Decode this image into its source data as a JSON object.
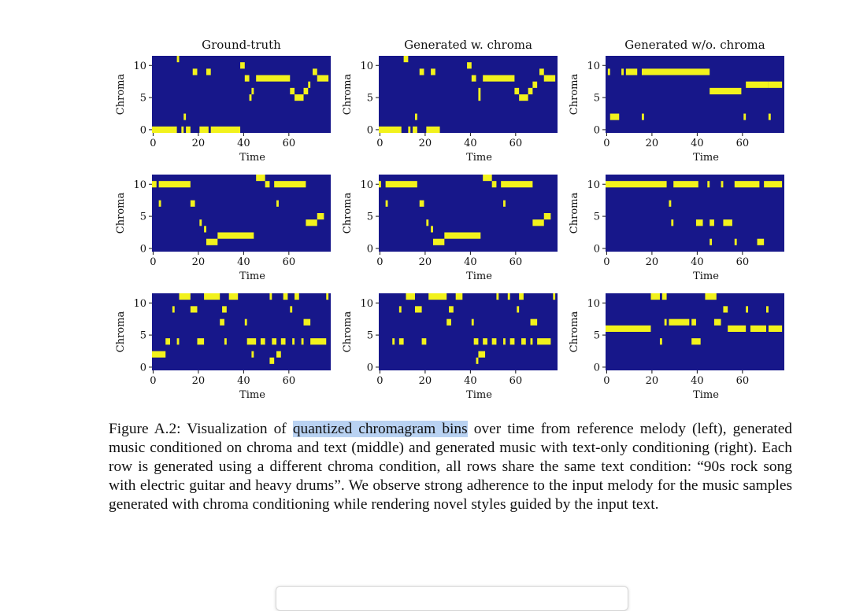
{
  "figure": {
    "titles": [
      "Ground-truth",
      "Generated w. chroma",
      "Generated w/o. chroma"
    ],
    "x_label": "Time",
    "y_label": "Chroma",
    "xlim": [
      -0.5,
      78.5
    ],
    "ylim": [
      -0.5,
      11.5
    ],
    "xticks": [
      0,
      20,
      40,
      60
    ],
    "yticks": [
      0,
      5,
      10
    ],
    "colors": {
      "low": "#17178a",
      "high": "#f2f21c"
    },
    "panels": [
      {
        "segments": [
          [
            0,
            11,
            0
          ],
          [
            13,
            14,
            0
          ],
          [
            15,
            17,
            0
          ],
          [
            21,
            25,
            0
          ],
          [
            26,
            39,
            0
          ],
          [
            14,
            15,
            2
          ],
          [
            11,
            12,
            11
          ],
          [
            18,
            20,
            9
          ],
          [
            24,
            26,
            9
          ],
          [
            39,
            41,
            10
          ],
          [
            71,
            73,
            9
          ],
          [
            41,
            43,
            8
          ],
          [
            46,
            61,
            8
          ],
          [
            73,
            78,
            8
          ],
          [
            44,
            45,
            6
          ],
          [
            43,
            44,
            5
          ],
          [
            61,
            63,
            6
          ],
          [
            63,
            67,
            5
          ],
          [
            67,
            69,
            6
          ],
          [
            69,
            70,
            7
          ]
        ]
      },
      {
        "segments": [
          [
            0,
            10,
            0
          ],
          [
            13,
            14,
            0
          ],
          [
            15,
            17,
            0
          ],
          [
            21,
            27,
            0
          ],
          [
            16,
            17,
            2
          ],
          [
            11,
            13,
            11
          ],
          [
            18,
            20,
            9
          ],
          [
            23,
            25,
            9
          ],
          [
            39,
            41,
            10
          ],
          [
            71,
            73,
            9
          ],
          [
            41,
            43,
            8
          ],
          [
            46,
            60,
            8
          ],
          [
            73,
            78,
            8
          ],
          [
            44,
            45,
            6
          ],
          [
            44,
            45,
            5
          ],
          [
            60,
            62,
            6
          ],
          [
            62,
            66,
            5
          ],
          [
            66,
            68,
            6
          ],
          [
            68,
            70,
            7
          ]
        ]
      },
      {
        "segments": [
          [
            1,
            2,
            9
          ],
          [
            7,
            8,
            9
          ],
          [
            9,
            14,
            9
          ],
          [
            16,
            46,
            9
          ],
          [
            46,
            60,
            6
          ],
          [
            62,
            72,
            7
          ],
          [
            72,
            78,
            7
          ],
          [
            2,
            6,
            2
          ],
          [
            16,
            17,
            2
          ],
          [
            61,
            62,
            2
          ],
          [
            72,
            73,
            2
          ]
        ]
      },
      {
        "segments": [
          [
            0,
            2,
            10
          ],
          [
            3,
            17,
            10
          ],
          [
            3,
            4,
            7
          ],
          [
            17,
            19,
            7
          ],
          [
            21,
            22,
            4
          ],
          [
            23,
            24,
            3
          ],
          [
            24,
            29,
            1
          ],
          [
            29,
            45,
            2
          ],
          [
            46,
            50,
            11
          ],
          [
            50,
            52,
            10
          ],
          [
            54,
            68,
            10
          ],
          [
            55,
            56,
            7
          ],
          [
            68,
            73,
            4
          ],
          [
            73,
            76,
            5
          ]
        ]
      },
      {
        "segments": [
          [
            0,
            1,
            10
          ],
          [
            3,
            17,
            10
          ],
          [
            3,
            4,
            7
          ],
          [
            18,
            20,
            7
          ],
          [
            21,
            22,
            4
          ],
          [
            23,
            24,
            3
          ],
          [
            24,
            29,
            1
          ],
          [
            29,
            45,
            2
          ],
          [
            46,
            50,
            11
          ],
          [
            50,
            52,
            10
          ],
          [
            54,
            68,
            10
          ],
          [
            55,
            56,
            7
          ],
          [
            68,
            73,
            4
          ],
          [
            73,
            76,
            5
          ]
        ]
      },
      {
        "segments": [
          [
            0,
            27,
            10
          ],
          [
            30,
            41,
            10
          ],
          [
            45,
            46,
            10
          ],
          [
            51,
            52,
            10
          ],
          [
            57,
            68,
            10
          ],
          [
            70,
            78,
            10
          ],
          [
            28,
            29,
            7
          ],
          [
            29,
            30,
            4
          ],
          [
            40,
            43,
            4
          ],
          [
            46,
            48,
            4
          ],
          [
            52,
            56,
            4
          ],
          [
            46,
            47,
            1
          ],
          [
            57,
            58,
            1
          ],
          [
            67,
            70,
            1
          ]
        ]
      },
      {
        "segments": [
          [
            12,
            17,
            11
          ],
          [
            23,
            30,
            11
          ],
          [
            34,
            38,
            11
          ],
          [
            52,
            53,
            11
          ],
          [
            58,
            60,
            11
          ],
          [
            63,
            65,
            11
          ],
          [
            77,
            78,
            11
          ],
          [
            9,
            10,
            9
          ],
          [
            17,
            20,
            9
          ],
          [
            31,
            33,
            9
          ],
          [
            61,
            62,
            9
          ],
          [
            30,
            32,
            7
          ],
          [
            41,
            42,
            7
          ],
          [
            67,
            70,
            7
          ],
          [
            6,
            8,
            4
          ],
          [
            11,
            12,
            4
          ],
          [
            20,
            23,
            4
          ],
          [
            32,
            33,
            4
          ],
          [
            42,
            46,
            4
          ],
          [
            48,
            50,
            4
          ],
          [
            53,
            55,
            4
          ],
          [
            57,
            59,
            4
          ],
          [
            62,
            63,
            4
          ],
          [
            66,
            67,
            4
          ],
          [
            70,
            77,
            4
          ],
          [
            0,
            6,
            2
          ],
          [
            44,
            45,
            2
          ],
          [
            55,
            57,
            2
          ],
          [
            52,
            54,
            1
          ]
        ]
      },
      {
        "segments": [
          [
            12,
            16,
            11
          ],
          [
            22,
            30,
            11
          ],
          [
            34,
            37,
            11
          ],
          [
            52,
            53,
            11
          ],
          [
            57,
            58,
            11
          ],
          [
            62,
            64,
            11
          ],
          [
            77,
            78,
            11
          ],
          [
            9,
            10,
            9
          ],
          [
            16,
            19,
            9
          ],
          [
            31,
            33,
            9
          ],
          [
            61,
            62,
            9
          ],
          [
            30,
            32,
            7
          ],
          [
            41,
            42,
            7
          ],
          [
            67,
            70,
            7
          ],
          [
            6,
            7,
            4
          ],
          [
            9,
            11,
            4
          ],
          [
            19,
            21,
            4
          ],
          [
            42,
            44,
            4
          ],
          [
            46,
            48,
            4
          ],
          [
            50,
            52,
            4
          ],
          [
            55,
            56,
            4
          ],
          [
            58,
            60,
            4
          ],
          [
            63,
            65,
            4
          ],
          [
            67,
            68,
            4
          ],
          [
            70,
            76,
            4
          ],
          [
            44,
            47,
            2
          ],
          [
            43,
            44,
            1
          ]
        ]
      },
      {
        "segments": [
          [
            20,
            24,
            11
          ],
          [
            25,
            27,
            11
          ],
          [
            44,
            49,
            11
          ],
          [
            52,
            54,
            9
          ],
          [
            62,
            63,
            9
          ],
          [
            71,
            72,
            9
          ],
          [
            26,
            27,
            7
          ],
          [
            28,
            37,
            7
          ],
          [
            38,
            40,
            7
          ],
          [
            48,
            51,
            7
          ],
          [
            0,
            20,
            6
          ],
          [
            54,
            62,
            6
          ],
          [
            64,
            71,
            6
          ],
          [
            72,
            78,
            6
          ],
          [
            24,
            25,
            4
          ],
          [
            38,
            42,
            4
          ]
        ]
      }
    ]
  },
  "caption": {
    "prefix": "Figure A.2: Visualization of ",
    "highlight": "quantized chromagram bins",
    "rest": " over time from reference melody (left), generated music conditioned on chroma and text (middle) and generated music with text-only conditioning (right). Each row is generated using a different chroma condition, all rows share the same text condition: “90s rock song with electric guitar and heavy drums”.  We observe strong adherence to the input melody for the music samples generated with chroma conditioning while rendering novel styles guided by the input text."
  }
}
